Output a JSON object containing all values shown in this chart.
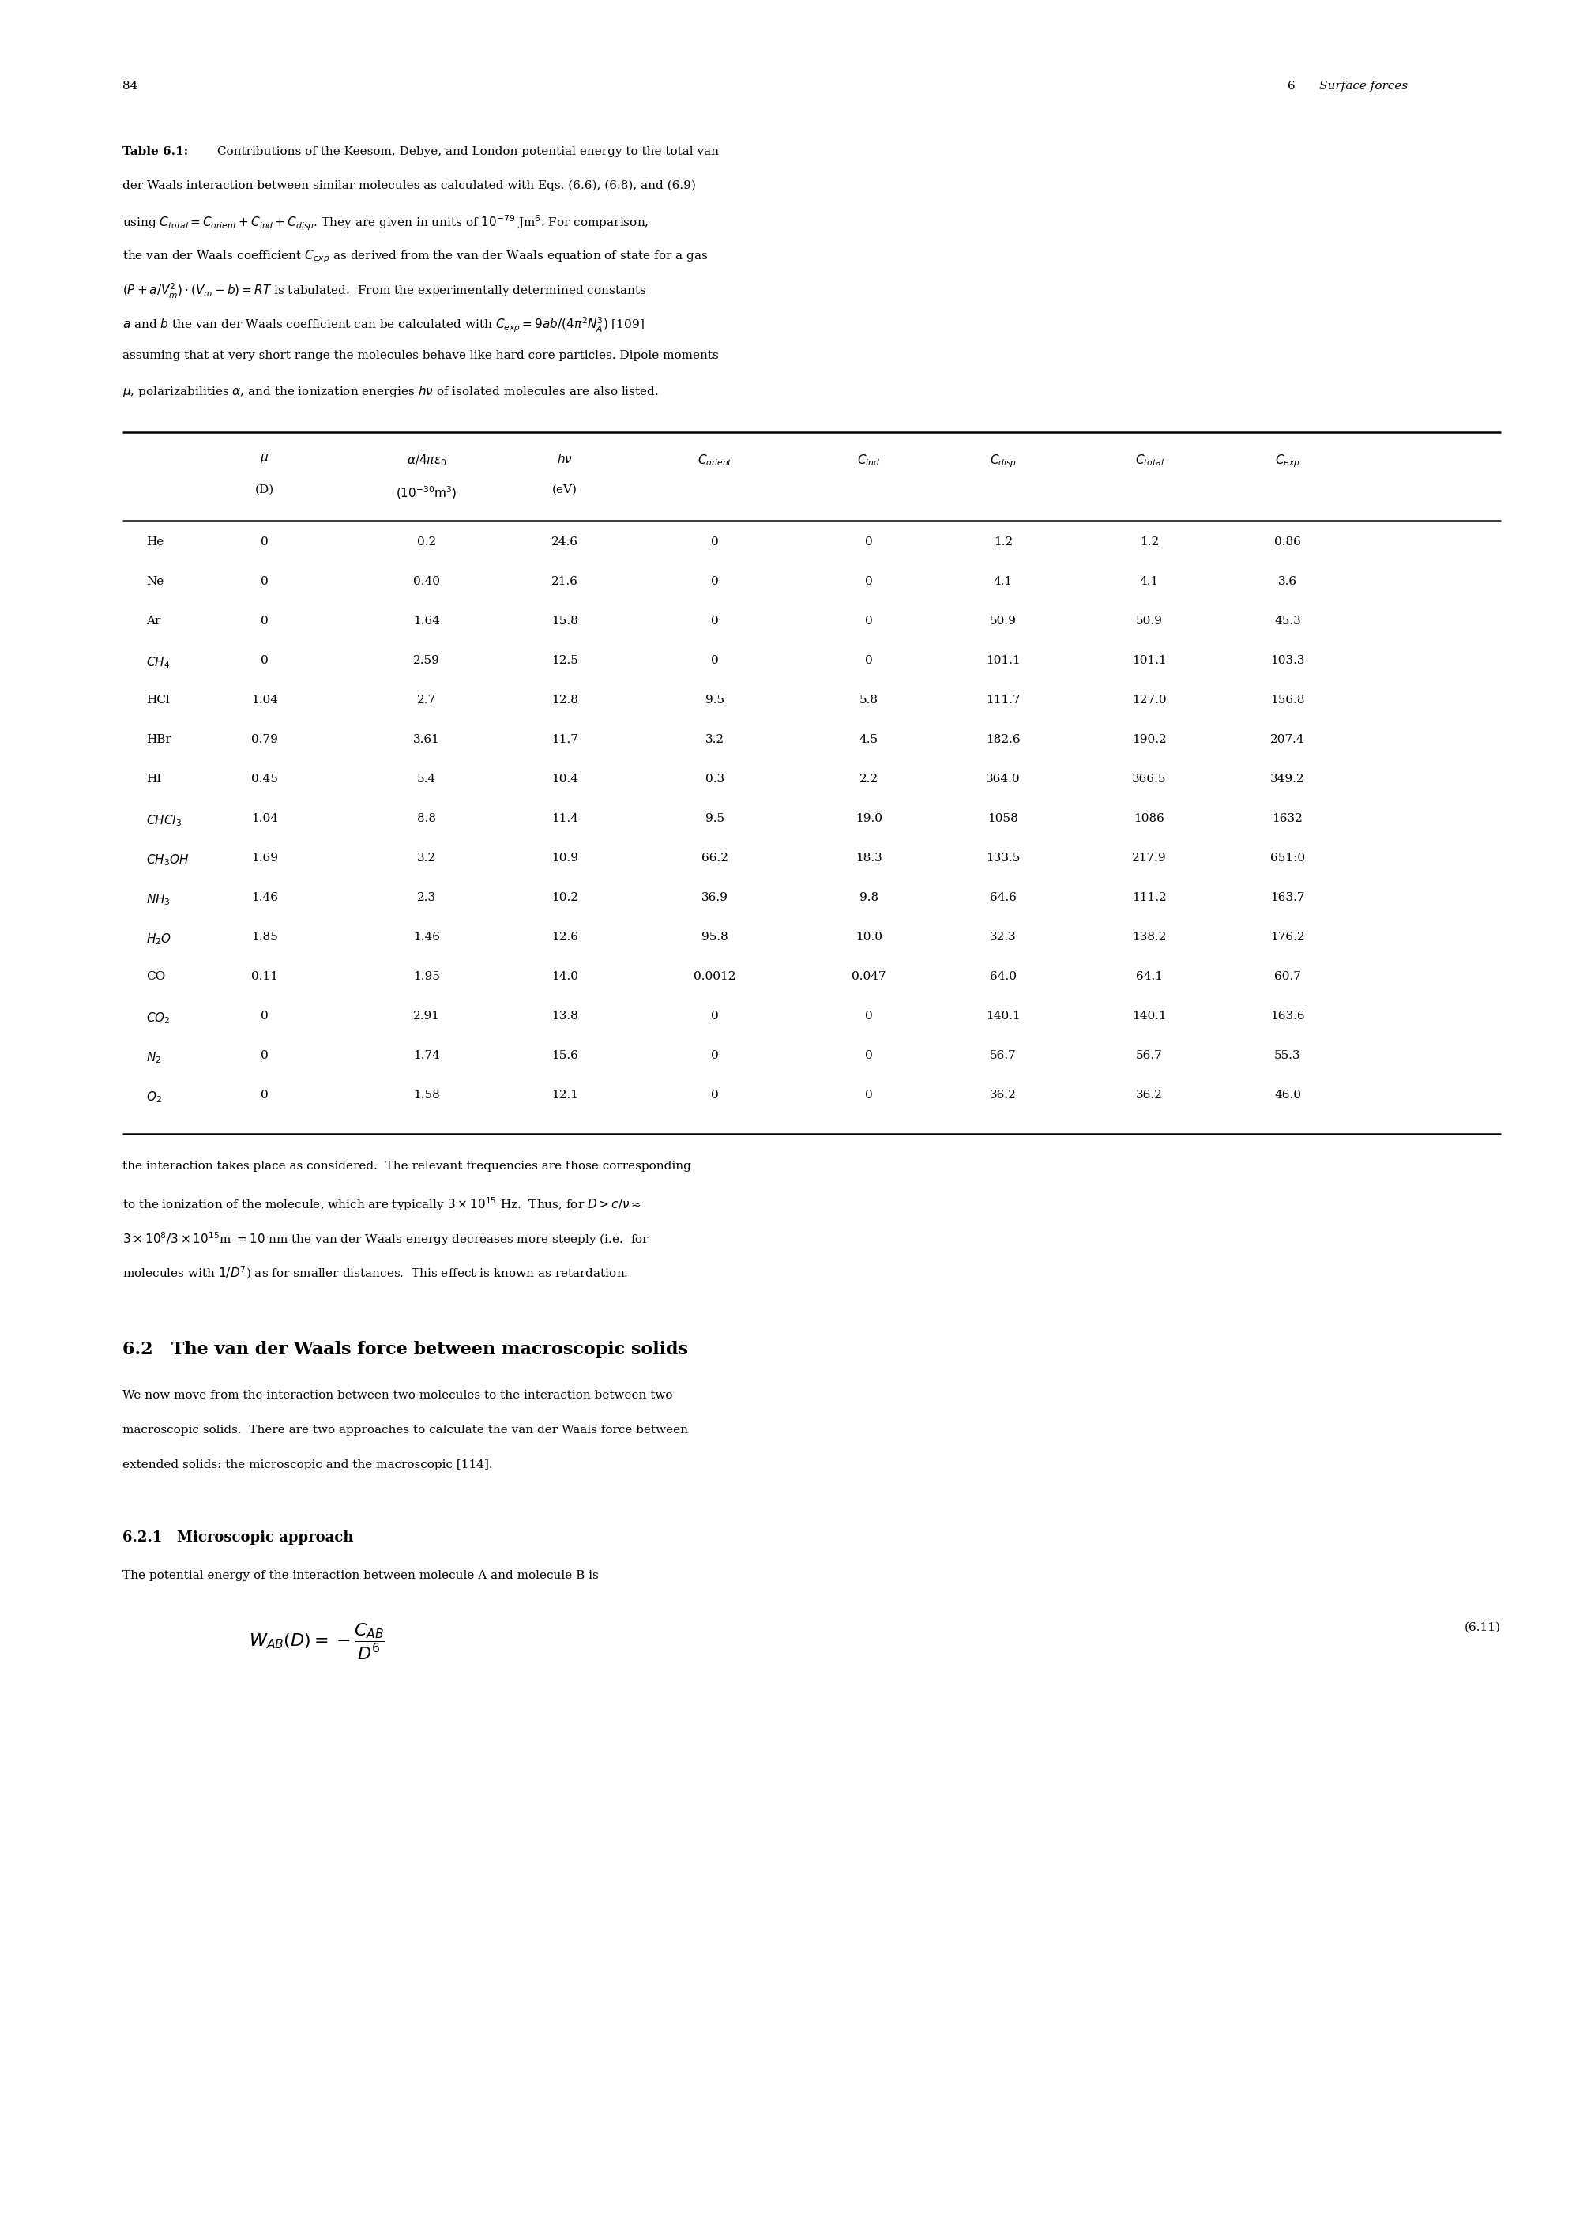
{
  "page_number": "84",
  "chapter_header_num": "6",
  "chapter_header_title": "Surface forces",
  "table_label": "Table 6.1:",
  "caption_line1_rest": " Contributions of the Keesom, Debye, and London potential energy to the total van",
  "caption_lines": [
    "der Waals interaction between similar molecules as calculated with Eqs. (6.6), (6.8), and (6.9)",
    "using $C_{total} = C_{orient} + C_{ind} + C_{disp}$. They are given in units of $10^{-79}$ Jm$^{6}$. For comparison,",
    "the van der Waals coefficient $C_{exp}$ as derived from the van der Waals equation of state for a gas",
    "$(P + a/V_m^2) \\cdot (V_m - b) = RT$ is tabulated.  From the experimentally determined constants",
    "$a$ and $b$ the van der Waals coefficient can be calculated with $C_{exp} = 9ab/(4\\pi^2 N_A^3)$ [109]",
    "assuming that at very short range the molecules behave like hard core particles. Dipole moments",
    "$\\mu$, polarizabilities $\\alpha$, and the ionization energies $h\\nu$ of isolated molecules are also listed."
  ],
  "col_headers_row1": [
    "$\\mu$",
    "$\\alpha/4\\pi\\varepsilon_0$",
    "$h\\nu$",
    "$C_{orient}$",
    "$C_{ind}$",
    "$C_{disp}$",
    "$C_{total}$",
    "$C_{exp}$"
  ],
  "col_headers_row2": [
    "(D)",
    "$(10^{-30}\\mathrm{m}^3)$",
    "(eV)",
    "",
    "",
    "",
    "",
    ""
  ],
  "data": [
    [
      "He",
      "0",
      "0.2",
      "24.6",
      "0",
      "0",
      "1.2",
      "1.2",
      "0.86"
    ],
    [
      "Ne",
      "0",
      "0.40",
      "21.6",
      "0",
      "0",
      "4.1",
      "4.1",
      "3.6"
    ],
    [
      "Ar",
      "0",
      "1.64",
      "15.8",
      "0",
      "0",
      "50.9",
      "50.9",
      "45.3"
    ],
    [
      "$CH_4$",
      "0",
      "2.59",
      "12.5",
      "0",
      "0",
      "101.1",
      "101.1",
      "103.3"
    ],
    [
      "HCl",
      "1.04",
      "2.7",
      "12.8",
      "9.5",
      "5.8",
      "111.7",
      "127.0",
      "156.8"
    ],
    [
      "HBr",
      "0.79",
      "3.61",
      "11.7",
      "3.2",
      "4.5",
      "182.6",
      "190.2",
      "207.4"
    ],
    [
      "HI",
      "0.45",
      "5.4",
      "10.4",
      "0.3",
      "2.2",
      "364.0",
      "366.5",
      "349.2"
    ],
    [
      "$CHCl_3$",
      "1.04",
      "8.8",
      "11.4",
      "9.5",
      "19.0",
      "1058",
      "1086",
      "1632"
    ],
    [
      "$CH_3OH$",
      "1.69",
      "3.2",
      "10.9",
      "66.2",
      "18.3",
      "133.5",
      "217.9",
      "651:0"
    ],
    [
      "$NH_3$",
      "1.46",
      "2.3",
      "10.2",
      "36.9",
      "9.8",
      "64.6",
      "111.2",
      "163.7"
    ],
    [
      "$H_2O$",
      "1.85",
      "1.46",
      "12.6",
      "95.8",
      "10.0",
      "32.3",
      "138.2",
      "176.2"
    ],
    [
      "CO",
      "0.11",
      "1.95",
      "14.0",
      "0.0012",
      "0.047",
      "64.0",
      "64.1",
      "60.7"
    ],
    [
      "$CO_2$",
      "0",
      "2.91",
      "13.8",
      "0",
      "0",
      "140.1",
      "140.1",
      "163.6"
    ],
    [
      "$N_2$",
      "0",
      "1.74",
      "15.6",
      "0",
      "0",
      "56.7",
      "56.7",
      "55.3"
    ],
    [
      "$O_2$",
      "0",
      "1.58",
      "12.1",
      "0",
      "0",
      "36.2",
      "36.2",
      "46.0"
    ]
  ],
  "body_lines": [
    "the interaction takes place as considered.  The relevant frequencies are those corresponding",
    "to the ionization of the molecule, which are typically $3\\times10^{15}$ Hz.  Thus, for $D > c/\\nu \\approx$",
    "$3 \\times 10^8/3 \\times 10^{15}$m $= 10$ nm the van der Waals energy decreases more steeply (i.e.  for",
    "molecules with $1/D^7$) as for smaller distances.  This effect is known as retardation."
  ],
  "section_heading": "6.2   The van der Waals force between macroscopic solids",
  "section_body_lines": [
    "We now move from the interaction between two molecules to the interaction between two",
    "macroscopic solids.  There are two approaches to calculate the van der Waals force between",
    "extended solids: the microscopic and the macroscopic [114]."
  ],
  "subsection_heading": "6.2.1   Microscopic approach",
  "subsection_body": "The potential energy of the interaction between molecule A and molecule B is",
  "equation": "$W_{AB}(D) = -\\dfrac{C_{AB}}{D^6}$",
  "eq_number": "(6.11)",
  "bg_color": "#ffffff"
}
